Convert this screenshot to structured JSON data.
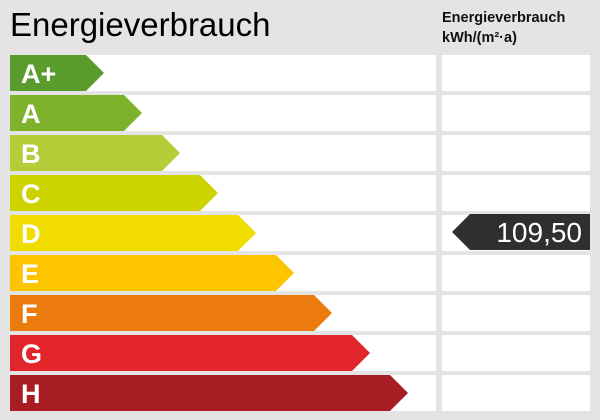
{
  "title": "Energieverbrauch",
  "unit_line1": "Energieverbrauch",
  "unit_line2": "kWh/(m²·a)",
  "chart_data": {
    "type": "bar",
    "title": "Energieverbrauch",
    "categories": [
      "A+",
      "A",
      "B",
      "C",
      "D",
      "E",
      "F",
      "G",
      "H"
    ],
    "colors": [
      "#5a9b2e",
      "#7fb22b",
      "#b4cd38",
      "#ccd300",
      "#f1dc00",
      "#fcc500",
      "#ec7b0d",
      "#e2252a",
      "#a81c24"
    ],
    "current_class": "D",
    "value": "109,50",
    "value_color": "#2f2f2f"
  }
}
